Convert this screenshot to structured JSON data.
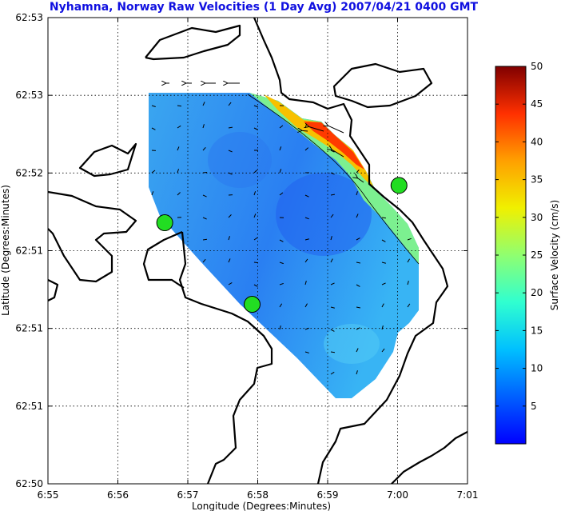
{
  "chart_data": {
    "type": "heatmap",
    "title": "Nyhamna, Norway Raw Velocities (1 Day Avg) 2007/04/21 0400 GMT",
    "xlabel": "Longitude (Degrees:Minutes)",
    "ylabel": "Latitude (Degrees:Minutes)",
    "x_ticks": [
      "6:55",
      "6:56",
      "6:57",
      "6:58",
      "6:59",
      "7:00",
      "7:01"
    ],
    "x_range_minutes": [
      55,
      61
    ],
    "y_ticks": [
      "62:50",
      "62:51",
      "62:51",
      "62:51",
      "62:52",
      "62:53",
      "62:53"
    ],
    "grid": true,
    "colorbar": {
      "label": "Surface Velocity (cm/s)",
      "range": [
        0,
        50
      ],
      "ticks": [
        "5",
        "10",
        "15",
        "20",
        "25",
        "30",
        "35",
        "40",
        "45",
        "50"
      ],
      "colormap": "jet"
    },
    "radar_sites": [
      {
        "lon_min": 56.67,
        "lat_frac": 0.56
      },
      {
        "lon_min": 57.92,
        "lat_frac": 0.385
      },
      {
        "lon_min": 60.02,
        "lat_frac": 0.64
      }
    ],
    "field_note": "speed mostly 3-10 cm/s, rising to 30-45 cm/s along the northeast edge"
  }
}
